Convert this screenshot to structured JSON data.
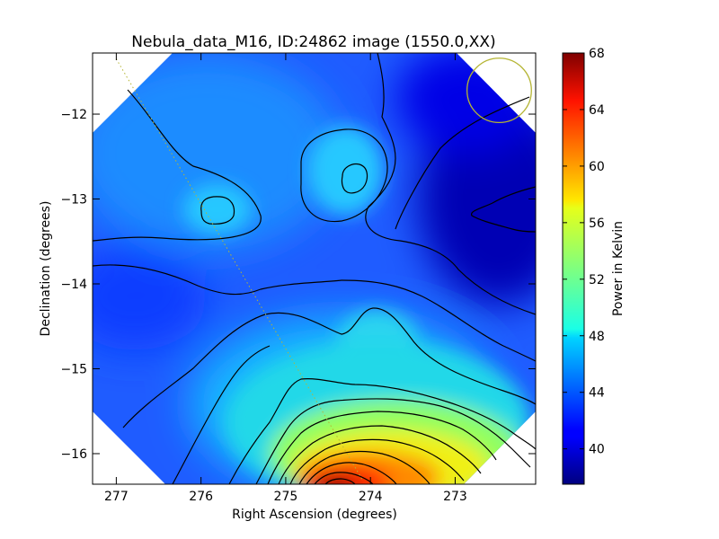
{
  "chart_data": {
    "type": "heatmap",
    "title": "Nebula_data_M16, ID:24862 image (1550.0,XX)",
    "xlabel": "Right Ascension (degrees)",
    "ylabel": "Declination (degrees)",
    "colorbar_label": "Power in Kelvin",
    "x_ticks": [
      277,
      276,
      275,
      274,
      273
    ],
    "x_tick_labels": [
      "277",
      "276",
      "275",
      "274",
      "273"
    ],
    "y_ticks": [
      -12,
      -13,
      -14,
      -15,
      -16
    ],
    "y_tick_labels": [
      "−12",
      "−13",
      "−14",
      "−15",
      "−16"
    ],
    "xlim": [
      277.28,
      272.05
    ],
    "ylim": [
      -16.36,
      -11.28
    ],
    "colorbar_ticks": [
      40,
      44,
      48,
      52,
      56,
      60,
      64,
      68
    ],
    "colorbar_tick_labels": [
      "40",
      "44",
      "48",
      "52",
      "56",
      "60",
      "64",
      "68"
    ],
    "color_range": [
      37.5,
      68
    ],
    "colormap": "jet",
    "beam_marker": {
      "shape": "circle",
      "ra": 272.48,
      "dec": -11.72,
      "radius_deg": 0.38,
      "color": "#b5b534"
    },
    "guide_line": {
      "style": "dotted",
      "color": "#b5b534",
      "from": [
        277.0,
        -11.35
      ],
      "to": [
        274.1,
        -16.3
      ]
    },
    "peaks": [
      {
        "ra": 274.35,
        "dec": -16.35,
        "value": 68
      },
      {
        "ra": 275.8,
        "dec": -13.15,
        "value": 47
      },
      {
        "ra": 274.15,
        "dec": -12.75,
        "value": 47
      }
    ],
    "minimum": {
      "ra": 272.3,
      "dec": -13.1,
      "value": 37.5
    }
  }
}
